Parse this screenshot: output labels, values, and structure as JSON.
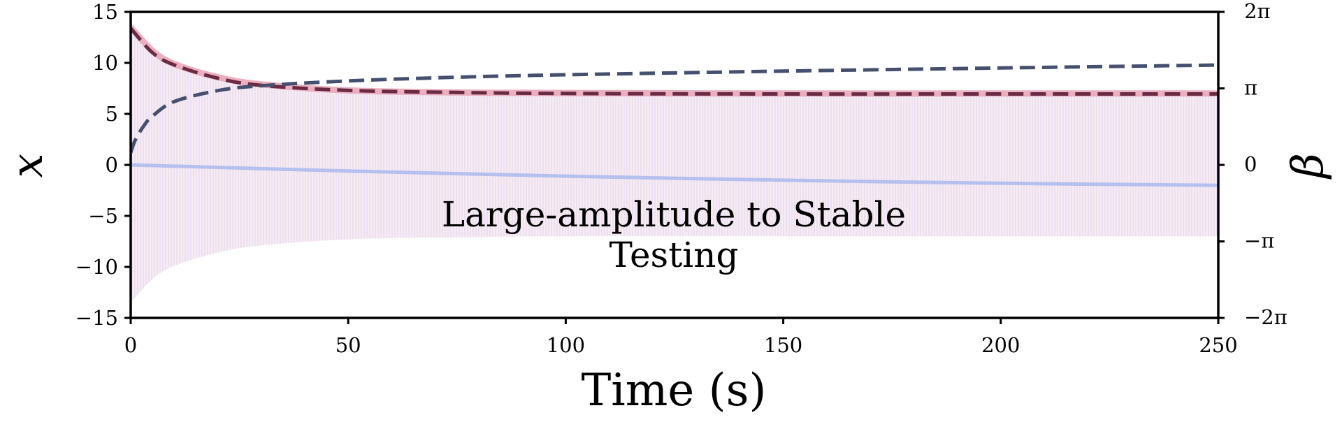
{
  "chart_data": {
    "type": "line",
    "xlabel": "Time (s)",
    "ylabel": "x",
    "ylabel_right": "β",
    "xlim": [
      0,
      250
    ],
    "ylim": [
      -15,
      15
    ],
    "ylim_right_radians": [
      -6.2832,
      6.2832
    ],
    "x_ticks": [
      0,
      50,
      100,
      150,
      200,
      250
    ],
    "y_ticks": [
      -15,
      -10,
      -5,
      0,
      5,
      10,
      15
    ],
    "right_ticks": [
      {
        "value": 6.2832,
        "label": "2π"
      },
      {
        "value": 3.1416,
        "label": "π"
      },
      {
        "value": 0,
        "label": "0"
      },
      {
        "value": -3.1416,
        "label": "−π"
      },
      {
        "value": -6.2832,
        "label": "−2π"
      }
    ],
    "annotation": [
      "Large-amplitude to Stable",
      "Testing"
    ],
    "grid": false,
    "colors": {
      "oscillation_fill": "#e6d6ee",
      "upper_envelope": "#e8a3b5",
      "envelope_dashed": "#6b2a44",
      "beta_dashed": "#454f6e",
      "drift_line": "#b6c0ee"
    },
    "series": [
      {
        "role": "oscillation band (max/min of x)",
        "x": [
          0,
          5,
          10,
          20,
          30,
          50,
          75,
          100,
          150,
          200,
          250
        ],
        "upper": [
          13.5,
          11.2,
          9.9,
          8.6,
          7.9,
          7.3,
          7.1,
          7.0,
          7.0,
          7.0,
          7.0
        ],
        "lower": [
          -13.5,
          -11.2,
          -9.9,
          -8.6,
          -7.9,
          -7.3,
          -7.1,
          -7.0,
          -7.0,
          -7.0,
          -7.0
        ]
      },
      {
        "role": "upper envelope (solid, x)",
        "x": [
          0,
          5,
          10,
          20,
          30,
          50,
          75,
          100,
          150,
          200,
          250
        ],
        "values": [
          13.5,
          11.2,
          9.9,
          8.6,
          7.9,
          7.3,
          7.1,
          7.05,
          7.0,
          7.0,
          7.0
        ]
      },
      {
        "role": "envelope fit (dashed, x)",
        "x": [
          0,
          5,
          10,
          20,
          30,
          50,
          75,
          100,
          150,
          200,
          250
        ],
        "values": [
          13.4,
          11.0,
          9.8,
          8.5,
          7.8,
          7.3,
          7.1,
          7.0,
          6.95,
          6.95,
          6.95
        ]
      },
      {
        "role": "β (dashed, right axis, radians)",
        "x": [
          0,
          1,
          3,
          5,
          10,
          20,
          30,
          50,
          75,
          100,
          150,
          200,
          250
        ],
        "values": [
          0.5,
          1.0,
          1.6,
          2.0,
          2.6,
          3.05,
          3.25,
          3.45,
          3.6,
          3.7,
          3.85,
          3.98,
          4.1
        ]
      },
      {
        "role": "drift (solid, x)",
        "x": [
          0,
          50,
          100,
          150,
          200,
          250
        ],
        "values": [
          0.0,
          -0.6,
          -1.1,
          -1.5,
          -1.8,
          -2.0
        ]
      }
    ]
  }
}
